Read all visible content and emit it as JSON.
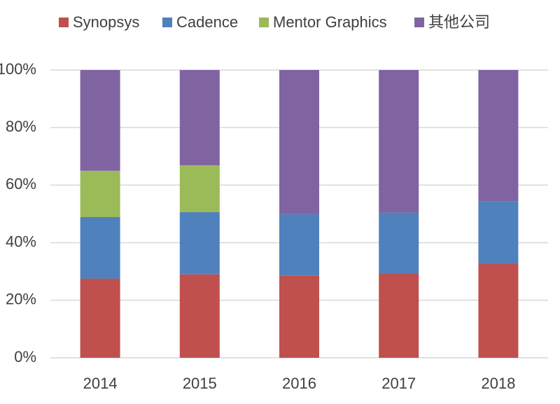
{
  "chart_data": {
    "type": "stacked-bar",
    "categories": [
      "2014",
      "2015",
      "2016",
      "2017",
      "2018"
    ],
    "series": [
      {
        "name": "Synopsys",
        "color": "#c0504d",
        "values": [
          27.5,
          29,
          28.5,
          29.2,
          32.6
        ]
      },
      {
        "name": "Cadence",
        "color": "#4f81bd",
        "values": [
          21.4,
          21.6,
          21.4,
          21.2,
          21.7
        ]
      },
      {
        "name": "Mentor Graphics",
        "color": "#9bbb59",
        "values": [
          16.1,
          16.3,
          0,
          0,
          0
        ]
      },
      {
        "name": "其他公司",
        "color": "#8064a2",
        "values": [
          35,
          33.1,
          50.1,
          49.6,
          45.7
        ]
      }
    ],
    "ylim": [
      0,
      100
    ],
    "yticks": [
      {
        "value": 0,
        "label": "0%"
      },
      {
        "value": 20,
        "label": "20%"
      },
      {
        "value": 40,
        "label": "40%"
      },
      {
        "value": 60,
        "label": "60%"
      },
      {
        "value": 80,
        "label": "80%"
      },
      {
        "value": 100,
        "label": "100%"
      }
    ],
    "grid": true,
    "legend": "top"
  }
}
